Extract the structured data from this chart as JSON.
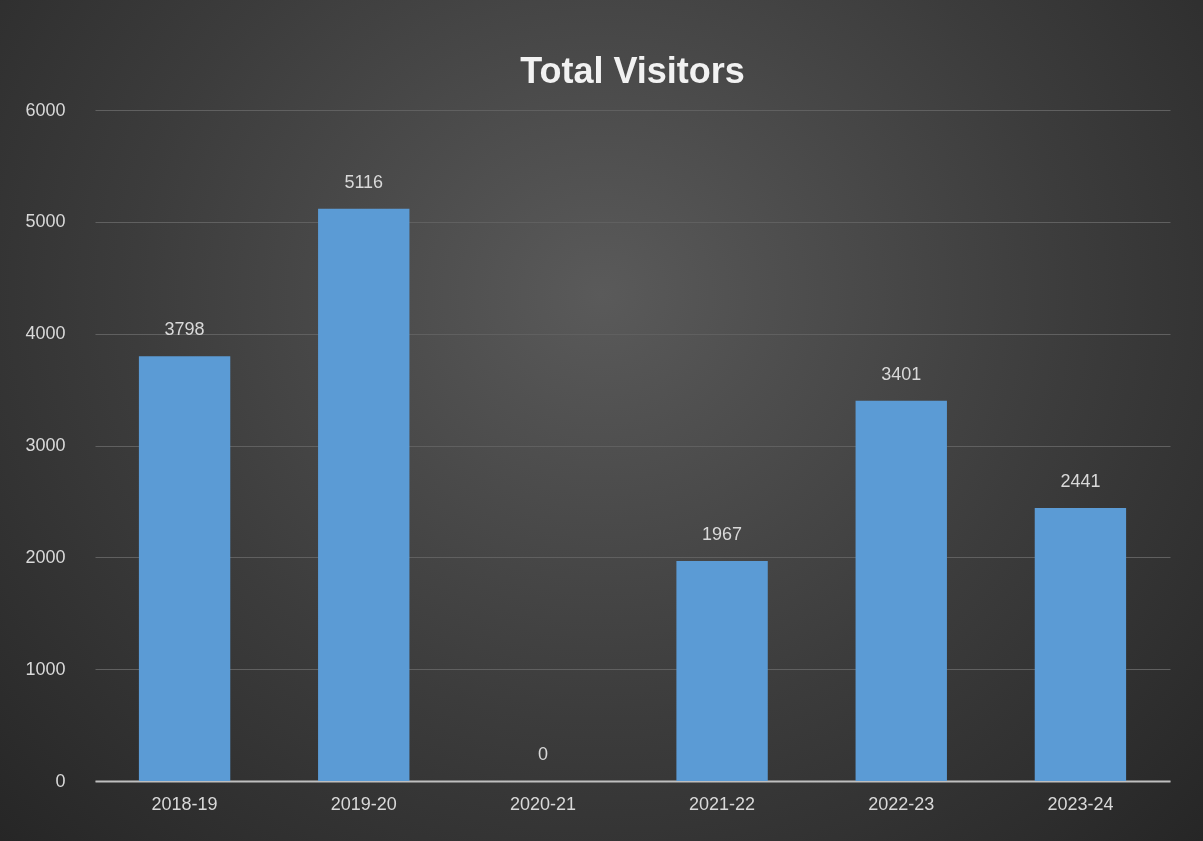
{
  "chart_data": {
    "type": "bar",
    "title": "Total Visitors",
    "categories": [
      "2018-19",
      "2019-20",
      "2020-21",
      "2021-22",
      "2022-23",
      "2023-24"
    ],
    "values": [
      3798,
      5116,
      0,
      1967,
      3401,
      2441
    ],
    "color": "#5b9bd5",
    "ylim": [
      0,
      6000
    ],
    "yticks": [
      0,
      1000,
      2000,
      3000,
      4000,
      5000,
      6000
    ],
    "grid": "y",
    "data_labels": true
  }
}
